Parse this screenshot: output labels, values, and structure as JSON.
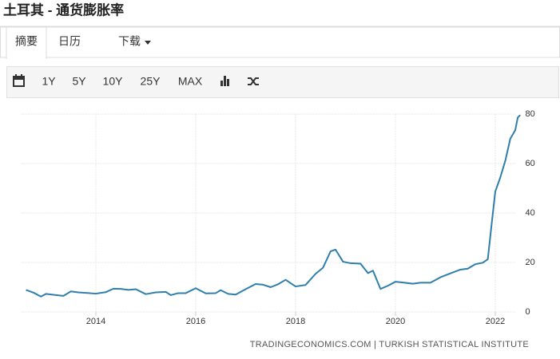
{
  "header": {
    "title": "土耳其 - 通货膨胀率"
  },
  "tabs": [
    "摘要",
    "日历",
    "下载"
  ],
  "toolbar": [
    "1Y",
    "5Y",
    "10Y",
    "25Y",
    "MAX"
  ],
  "chart_data": {
    "type": "line",
    "color": "#2f7eab",
    "grid": true,
    "x": [
      2012.6,
      2012.75,
      2012.9,
      2013.0,
      2013.2,
      2013.35,
      2013.5,
      2013.65,
      2013.8,
      2014.0,
      2014.2,
      2014.35,
      2014.5,
      2014.65,
      2014.8,
      2015.0,
      2015.2,
      2015.4,
      2015.5,
      2015.65,
      2015.8,
      2016.0,
      2016.2,
      2016.4,
      2016.5,
      2016.65,
      2016.8,
      2017.0,
      2017.2,
      2017.35,
      2017.5,
      2017.65,
      2017.8,
      2018.0,
      2018.2,
      2018.4,
      2018.55,
      2018.7,
      2018.8,
      2018.95,
      2019.1,
      2019.3,
      2019.45,
      2019.55,
      2019.7,
      2019.85,
      2020.0,
      2020.15,
      2020.35,
      2020.5,
      2020.7,
      2020.9,
      2021.1,
      2021.3,
      2021.45,
      2021.6,
      2021.75,
      2021.85,
      2021.93,
      2022.0,
      2022.1,
      2022.2,
      2022.3,
      2022.4,
      2022.45,
      2022.5
    ],
    "values": [
      8.9,
      7.8,
      6.2,
      7.3,
      6.8,
      6.5,
      8.3,
      7.9,
      7.7,
      7.4,
      8.0,
      9.4,
      9.3,
      8.9,
      9.2,
      7.2,
      7.9,
      8.1,
      6.8,
      7.6,
      7.6,
      9.6,
      7.5,
      7.6,
      8.8,
      7.3,
      7.0,
      9.2,
      11.3,
      11.0,
      10.0,
      11.2,
      13.0,
      10.3,
      10.9,
      15.4,
      17.9,
      24.5,
      25.2,
      20.3,
      19.7,
      19.5,
      15.7,
      16.7,
      9.3,
      10.6,
      12.2,
      11.9,
      11.4,
      11.8,
      11.8,
      14.0,
      15.6,
      17.1,
      17.5,
      19.3,
      19.9,
      21.3,
      36.1,
      48.7,
      54.4,
      61.1,
      70.0,
      73.5,
      78.6,
      79.6
    ],
    "xlim": [
      2012.5,
      2022.6
    ],
    "xticks": [
      2014,
      2016,
      2018,
      2020,
      2022
    ],
    "ylim": [
      0,
      80
    ],
    "yticks": [
      0,
      20,
      40,
      60,
      80
    ],
    "source": "TRADINGECONOMICS.COM | TURKISH STATISTICAL INSTITUTE"
  }
}
